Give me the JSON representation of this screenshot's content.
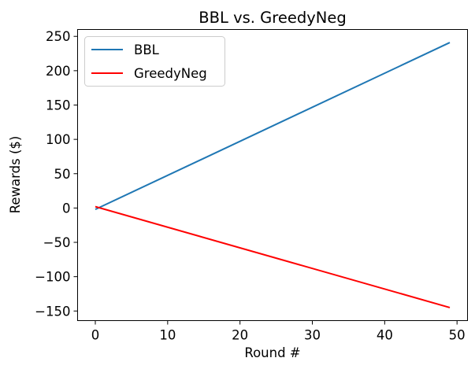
{
  "chart_data": {
    "type": "line",
    "title": "BBL vs. GreedyNeg",
    "xlabel": "Round #",
    "ylabel": "Rewards ($)",
    "xlim": [
      -2.45,
      51.45
    ],
    "ylim": [
      -164.0,
      260.0
    ],
    "xticks": [
      0,
      10,
      20,
      30,
      40,
      50
    ],
    "yticks": [
      -150,
      -100,
      -50,
      0,
      50,
      100,
      150,
      200,
      250
    ],
    "grid": false,
    "legend_position": "top-left",
    "series": [
      {
        "name": "BBL",
        "color": "#1f77b4",
        "x": [
          0,
          49
        ],
        "y": [
          -2,
          241
        ]
      },
      {
        "name": "GreedyNeg",
        "color": "#ff0000",
        "x": [
          0,
          49
        ],
        "y": [
          2,
          -145
        ]
      }
    ]
  }
}
